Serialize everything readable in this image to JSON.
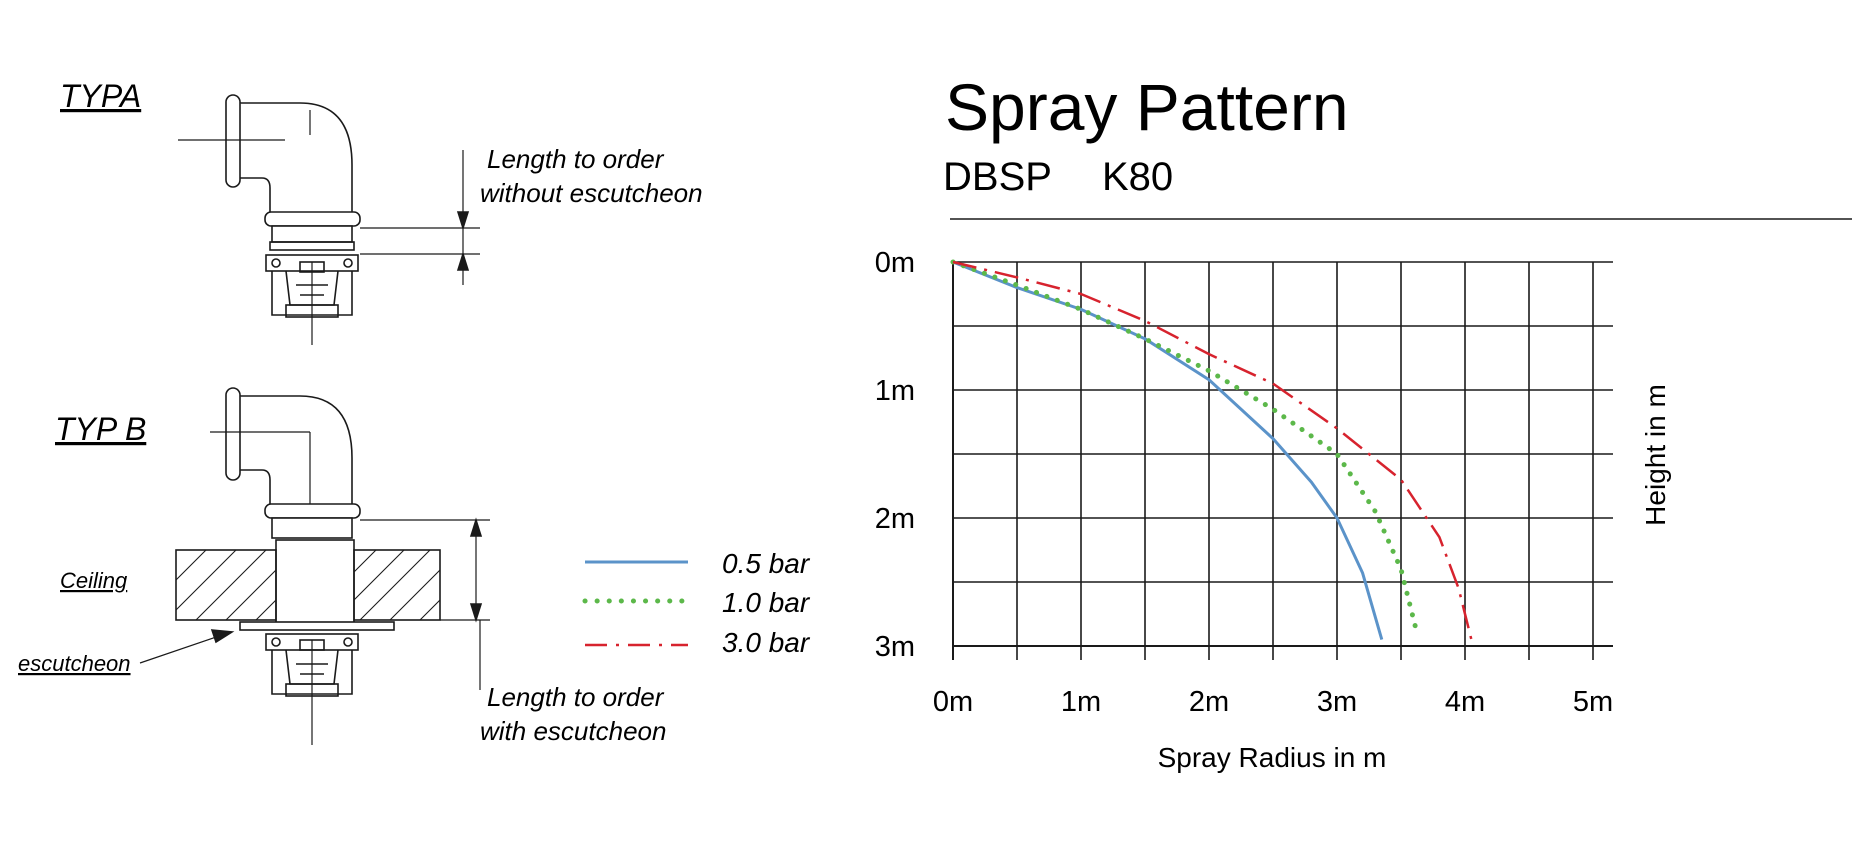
{
  "diagram": {
    "typ_a": "TYPA",
    "typ_b": "TYP B",
    "dim_a_line1": "Length to order",
    "dim_a_line2": "without escutcheon",
    "dim_b_line1": "Length to order",
    "dim_b_line2": "with escutcheon",
    "ceiling": "Ceiling",
    "escutcheon": "escutcheon"
  },
  "legend": [
    {
      "label": "0.5 bar",
      "color": "#5b93c9",
      "style": "solid"
    },
    {
      "label": "1.0 bar",
      "color": "#5cb84a",
      "style": "dotted"
    },
    {
      "label": "3.0 bar",
      "color": "#d7232e",
      "style": "dash-dot"
    }
  ],
  "header": {
    "title": "Spray Pattern",
    "model": "DBSP",
    "k_factor": "K80"
  },
  "chart_data": {
    "type": "line",
    "title": "Spray Pattern",
    "subtitle": "DBSP K80",
    "xlabel": "Spray Radius in m",
    "ylabel": "Height in m",
    "xlim": [
      0,
      5
    ],
    "ylim": [
      0,
      3
    ],
    "y_inverted": true,
    "grid_step": 0.5,
    "grid": true,
    "x_ticks": [
      {
        "value": 0,
        "label": "0m"
      },
      {
        "value": 1,
        "label": "1m"
      },
      {
        "value": 2,
        "label": "2m"
      },
      {
        "value": 3,
        "label": "3m"
      },
      {
        "value": 4,
        "label": "4m"
      },
      {
        "value": 5,
        "label": "5m"
      }
    ],
    "y_ticks": [
      {
        "value": 0,
        "label": "0m"
      },
      {
        "value": 1,
        "label": "1m"
      },
      {
        "value": 2,
        "label": "2m"
      },
      {
        "value": 3,
        "label": "3m"
      }
    ],
    "series": [
      {
        "name": "0.5 bar",
        "color": "#5b93c9",
        "dash": "none",
        "points": [
          [
            0,
            0
          ],
          [
            0.5,
            0.2
          ],
          [
            1,
            0.37
          ],
          [
            1.5,
            0.6
          ],
          [
            2,
            0.92
          ],
          [
            2.5,
            1.38
          ],
          [
            2.8,
            1.72
          ],
          [
            3,
            2.0
          ],
          [
            3.2,
            2.43
          ],
          [
            3.35,
            2.95
          ]
        ]
      },
      {
        "name": "1.0 bar",
        "color": "#5cb84a",
        "dash": "dotted",
        "points": [
          [
            0,
            0
          ],
          [
            0.5,
            0.18
          ],
          [
            1,
            0.37
          ],
          [
            1.5,
            0.6
          ],
          [
            2,
            0.85
          ],
          [
            2.5,
            1.15
          ],
          [
            3,
            1.5
          ],
          [
            3.3,
            1.95
          ],
          [
            3.5,
            2.4
          ],
          [
            3.63,
            2.92
          ]
        ]
      },
      {
        "name": "3.0 bar",
        "color": "#d7232e",
        "dash": "dashdot",
        "points": [
          [
            0,
            0
          ],
          [
            0.5,
            0.12
          ],
          [
            1,
            0.25
          ],
          [
            1.5,
            0.46
          ],
          [
            2,
            0.72
          ],
          [
            2.5,
            0.95
          ],
          [
            3,
            1.3
          ],
          [
            3.5,
            1.7
          ],
          [
            3.8,
            2.15
          ],
          [
            3.95,
            2.55
          ],
          [
            4.05,
            2.95
          ]
        ]
      }
    ]
  }
}
